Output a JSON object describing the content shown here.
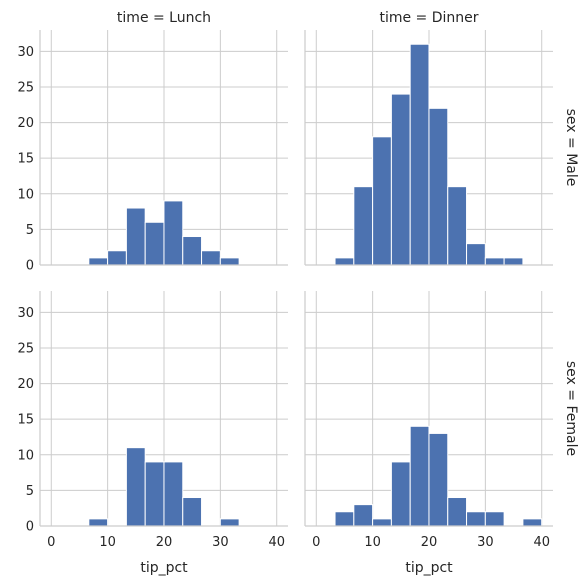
{
  "chart_data": {
    "type": "bar",
    "kind": "faceted-histogram",
    "xlabel": "tip_pct",
    "x_ticks": [
      0,
      10,
      20,
      30,
      40
    ],
    "y_ticks": [
      0,
      5,
      10,
      15,
      20,
      25,
      30
    ],
    "xlim": [
      -2,
      42
    ],
    "ylim": [
      0,
      33
    ],
    "bin_width": 3.333,
    "bin_start": 3.33,
    "grid": true,
    "bar_color": "#4c72b0",
    "col_titles": [
      "time = Lunch",
      "time = Dinner"
    ],
    "row_titles": [
      "sex = Male",
      "sex = Female"
    ],
    "panels": [
      {
        "row": 0,
        "col": 0,
        "counts": [
          0,
          1,
          2,
          8,
          6,
          9,
          4,
          2,
          1,
          0,
          0
        ]
      },
      {
        "row": 0,
        "col": 1,
        "counts": [
          1,
          11,
          18,
          24,
          31,
          22,
          11,
          3,
          1,
          1,
          0
        ]
      },
      {
        "row": 1,
        "col": 0,
        "counts": [
          0,
          1,
          0,
          11,
          9,
          9,
          4,
          0,
          1,
          0,
          0
        ]
      },
      {
        "row": 1,
        "col": 1,
        "counts": [
          2,
          3,
          1,
          9,
          14,
          13,
          4,
          2,
          2,
          0,
          1
        ]
      }
    ]
  }
}
